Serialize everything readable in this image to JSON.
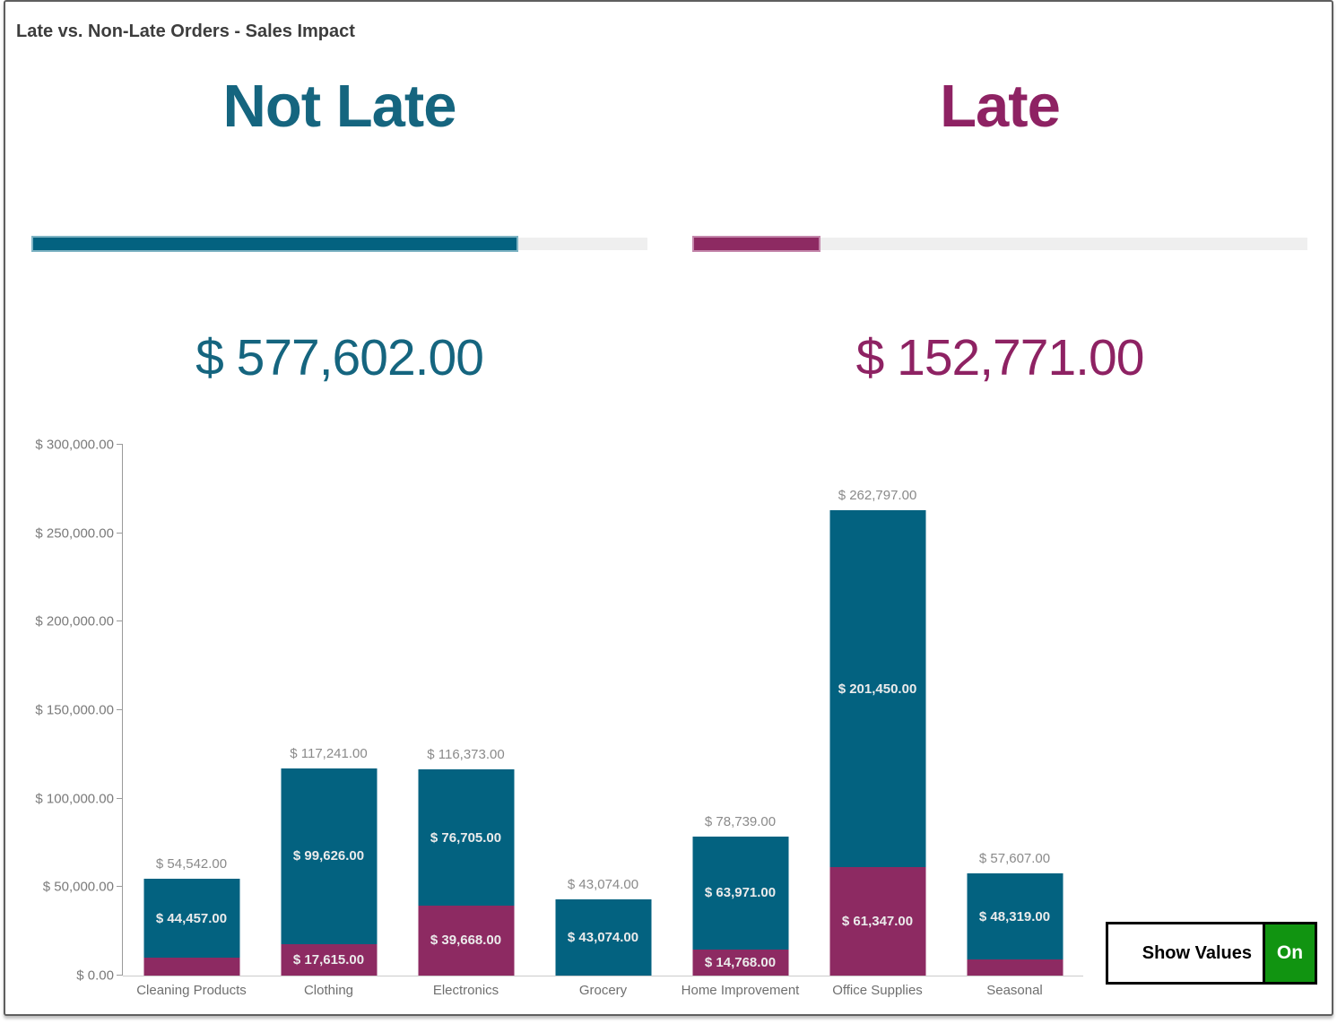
{
  "header": {
    "title": "Late vs. Non-Late Orders - Sales Impact"
  },
  "kpis": {
    "not_late": {
      "title": "Not Late",
      "value": "$ 577,602.00",
      "fill_percent": 79.1,
      "text_color": "#15657f",
      "bar_color": "#036280"
    },
    "late": {
      "title": "Late",
      "value": "$ 152,771.00",
      "fill_percent": 20.9,
      "text_color": "#8e2263",
      "bar_color": "#8d2a62"
    }
  },
  "controls": {
    "show_values_label": "Show Values",
    "toggle_state": "On",
    "toggle_color": "#119411"
  },
  "chart_data": {
    "type": "bar",
    "stacked": true,
    "title": "Late vs. Non-Late Orders - Sales Impact",
    "xlabel": "",
    "ylabel": "",
    "ylim": [
      0,
      300000
    ],
    "grid": false,
    "legend": "none",
    "categories": [
      "Cleaning Products",
      "Clothing",
      "Electronics",
      "Grocery",
      "Home Improvement",
      "Office Supplies",
      "Seasonal"
    ],
    "series": [
      {
        "name": "Late",
        "color": "#8d2a62",
        "values": [
          10085,
          17615,
          39668,
          0,
          14768,
          61347,
          9288
        ],
        "labels": [
          "",
          "$ 17,615.00",
          "$ 39,668.00",
          "",
          "$ 14,768.00",
          "$ 61,347.00",
          ""
        ]
      },
      {
        "name": "Not Late",
        "color": "#036280",
        "values": [
          44457,
          99626,
          76705,
          43074,
          63971,
          201450,
          48319
        ],
        "labels": [
          "$ 44,457.00",
          "$ 99,626.00",
          "$ 76,705.00",
          "$ 43,074.00",
          "$ 63,971.00",
          "$ 201,450.00",
          "$ 48,319.00"
        ]
      }
    ],
    "totals": [
      54542,
      117241,
      116373,
      43074,
      78739,
      262797,
      57607
    ],
    "total_labels": [
      "$ 54,542.00",
      "$ 117,241.00",
      "$ 116,373.00",
      "$ 43,074.00",
      "$ 78,739.00",
      "$ 262,797.00",
      "$ 57,607.00"
    ],
    "yticks": {
      "values": [
        0,
        50000,
        100000,
        150000,
        200000,
        250000,
        300000
      ],
      "labels": [
        "$ 0.00",
        "$ 50,000.00",
        "$ 100,000.00",
        "$ 150,000.00",
        "$ 200,000.00",
        "$ 250,000.00",
        "$ 300,000.00"
      ]
    }
  }
}
